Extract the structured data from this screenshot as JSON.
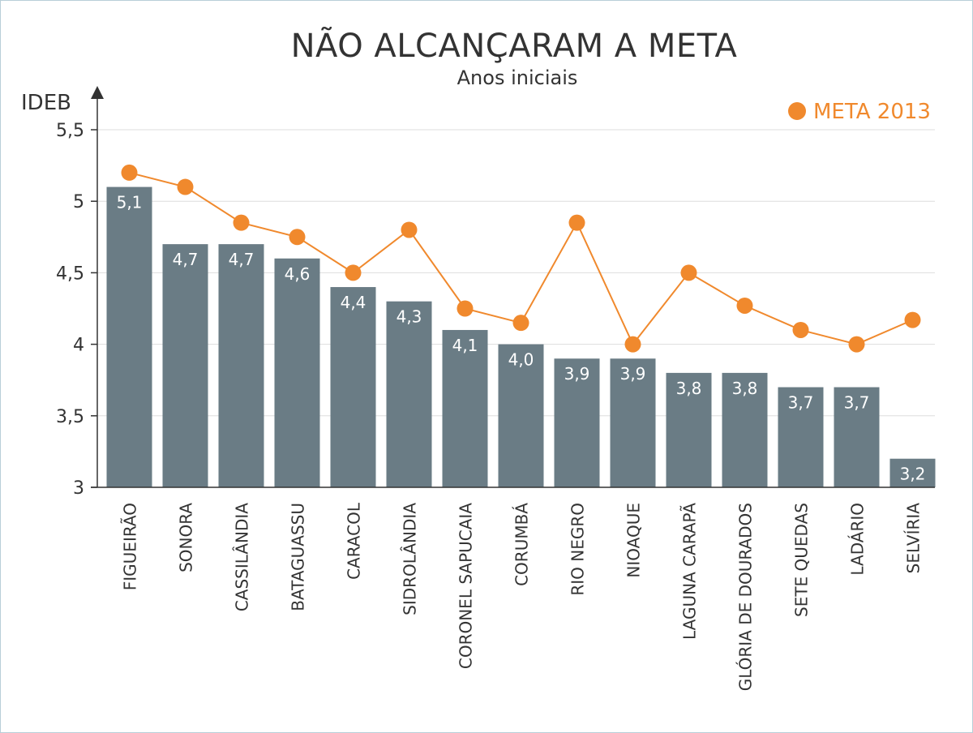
{
  "chart_data": {
    "type": "bar",
    "title": "NÃO ALCANÇARAM A META",
    "subtitle": "Anos iniciais",
    "ylabel": "IDEB",
    "ylim": [
      3,
      5.5
    ],
    "yticks": [
      {
        "value": 3,
        "label": "3"
      },
      {
        "value": 3.5,
        "label": "3,5"
      },
      {
        "value": 4,
        "label": "4"
      },
      {
        "value": 4.5,
        "label": "4,5"
      },
      {
        "value": 5,
        "label": "5"
      },
      {
        "value": 5.5,
        "label": "5,5"
      }
    ],
    "grid": true,
    "legend_position": "top-right",
    "categories": [
      "FIGUEIRÃO",
      "SONORA",
      "CASSILÂNDIA",
      "BATAGUASSU",
      "CARACOL",
      "SIDROLÂNDIA",
      "CORONEL SAPUCAIA",
      "CORUMBÁ",
      "RIO NEGRO",
      "NIOAQUE",
      "LAGUNA CARAPÃ",
      "GLÓRIA DE DOURADOS",
      "SETE QUEDAS",
      "LADÁRIO",
      "SELVÍRIA"
    ],
    "series": [
      {
        "type": "bar",
        "color": "#6a7c85",
        "values": [
          5.1,
          4.7,
          4.7,
          4.6,
          4.4,
          4.3,
          4.1,
          4.0,
          3.9,
          3.9,
          3.8,
          3.8,
          3.7,
          3.7,
          3.2
        ],
        "labels": [
          "5,1",
          "4,7",
          "4,7",
          "4,6",
          "4,4",
          "4,3",
          "4,1",
          "4,0",
          "3,9",
          "3,9",
          "3,8",
          "3,8",
          "3,7",
          "3,7",
          "3,2"
        ]
      },
      {
        "type": "line",
        "name": "META 2013",
        "color": "#f0892d",
        "values": [
          5.2,
          5.1,
          4.85,
          4.75,
          4.5,
          4.8,
          4.25,
          4.15,
          4.85,
          4.0,
          4.5,
          4.27,
          4.1,
          4.0,
          4.17
        ]
      }
    ]
  }
}
